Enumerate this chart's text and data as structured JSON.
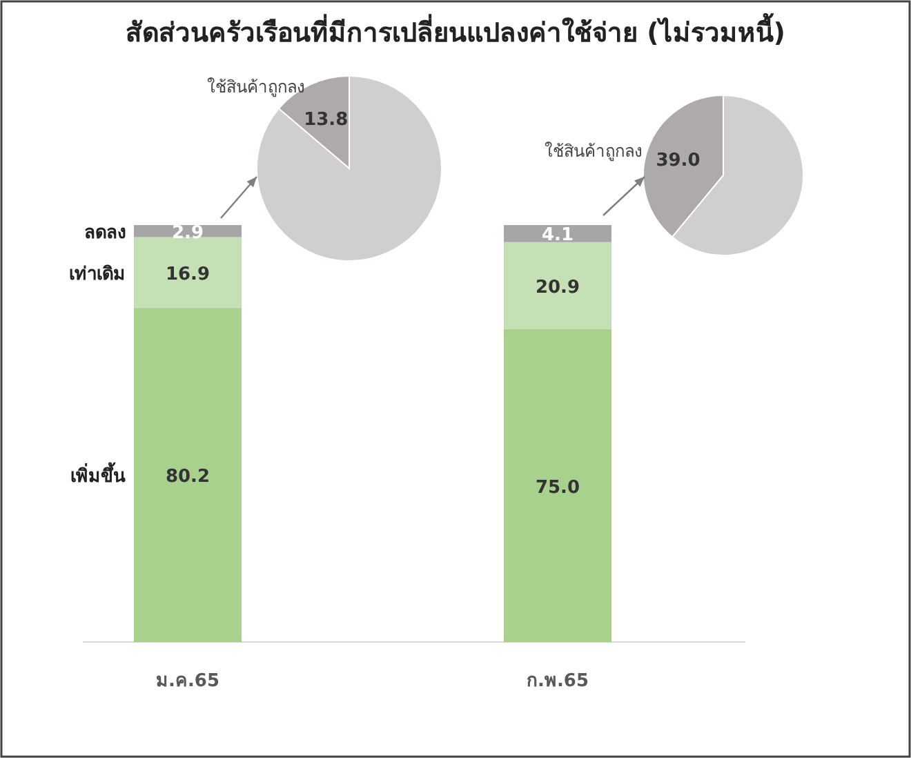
{
  "chart_data": [
    {
      "type": "bar",
      "title": "สัดส่วนครัวเรือนที่มีการเปลี่ยนแปลงค่าใช้จ่าย (ไม่รวมหนี้)",
      "stacked": true,
      "categories": [
        "ม.ค.65",
        "ก.พ.65"
      ],
      "series": [
        {
          "name": "เพิ่มขึ้น",
          "color": "#a9d18e",
          "values": [
            80.2,
            75.0
          ],
          "value_labels": [
            "80.2",
            "75.0"
          ]
        },
        {
          "name": "เท่าเดิม",
          "color": "#c5e0b4",
          "values": [
            16.9,
            20.9
          ],
          "value_labels": [
            "16.9",
            "20.9"
          ]
        },
        {
          "name": "ลดลง",
          "color": "#a6a6a6",
          "values": [
            2.9,
            4.1
          ],
          "value_labels": [
            "2.9",
            "4.1"
          ]
        }
      ]
    },
    {
      "type": "pie",
      "categories": [
        "ใช้สินค้าถูกลง",
        null
      ],
      "values": [
        13.8,
        86.2
      ],
      "colors": [
        "#aeaaaa",
        "#d0cece"
      ],
      "value_labels": [
        "13.8",
        null
      ]
    },
    {
      "type": "pie",
      "categories": [
        "ใช้สินค้าถูกลง",
        null
      ],
      "values": [
        39.0,
        61.0
      ],
      "colors": [
        "#aeaaaa",
        "#d0cece"
      ],
      "value_labels": [
        "39.0",
        null
      ]
    }
  ]
}
